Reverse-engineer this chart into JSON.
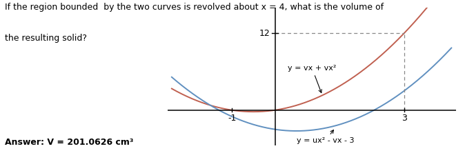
{
  "title_line1": "If the region bounded  by the two curves is revolved about x = 4, what is the volume of",
  "title_line2": "the resulting solid?",
  "answer_text": "Answer: V = 201.0626 cm³",
  "curve1_label": "y = vx + vx²",
  "curve2_label": "y = ux² - vx - 3",
  "curve1_color": "#c06050",
  "curve2_color": "#6090c0",
  "xlim": [
    -2.5,
    4.2
  ],
  "ylim": [
    -5.5,
    16
  ],
  "background": "#ffffff",
  "dashed_color": "#888888",
  "axis_color": "#000000",
  "text_fontsize": 9,
  "curve_fontsize": 8,
  "tick_fontsize": 9
}
